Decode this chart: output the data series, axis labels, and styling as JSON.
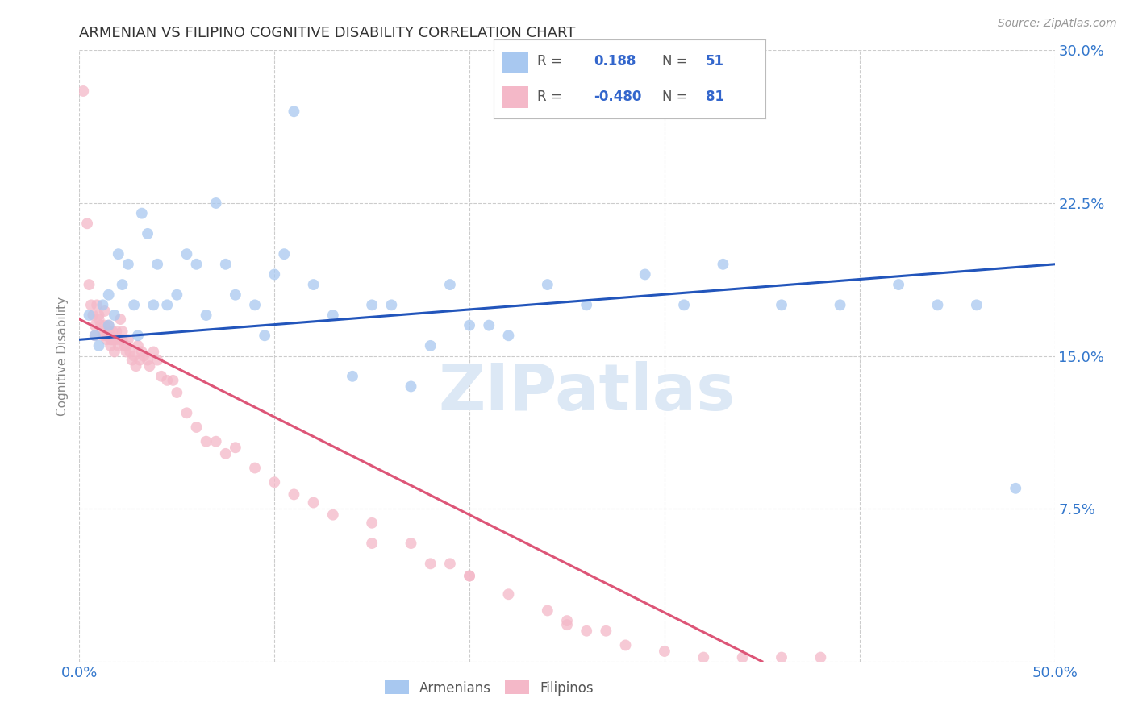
{
  "title": "ARMENIAN VS FILIPINO COGNITIVE DISABILITY CORRELATION CHART",
  "source": "Source: ZipAtlas.com",
  "ylabel_label": "Cognitive Disability",
  "xlim": [
    0.0,
    0.5
  ],
  "ylim": [
    0.0,
    0.3
  ],
  "xticks": [
    0.0,
    0.1,
    0.2,
    0.3,
    0.4,
    0.5
  ],
  "yticks": [
    0.0,
    0.075,
    0.15,
    0.225,
    0.3
  ],
  "xtick_labels": [
    "0.0%",
    "",
    "",
    "",
    "",
    "50.0%"
  ],
  "ytick_labels": [
    "",
    "7.5%",
    "15.0%",
    "22.5%",
    "30.0%"
  ],
  "legend_armenian_R": "0.188",
  "legend_armenian_N": "51",
  "legend_filipino_R": "-0.480",
  "legend_filipino_N": "81",
  "armenian_color": "#a8c8f0",
  "filipino_color": "#f4b8c8",
  "armenian_line_color": "#2255bb",
  "filipino_line_color": "#dd5577",
  "watermark": "ZIPatlas",
  "armenian_x": [
    0.005,
    0.008,
    0.01,
    0.012,
    0.015,
    0.015,
    0.018,
    0.02,
    0.022,
    0.025,
    0.028,
    0.03,
    0.032,
    0.035,
    0.038,
    0.04,
    0.045,
    0.05,
    0.055,
    0.06,
    0.065,
    0.07,
    0.075,
    0.08,
    0.09,
    0.095,
    0.1,
    0.105,
    0.11,
    0.12,
    0.13,
    0.14,
    0.15,
    0.16,
    0.17,
    0.18,
    0.19,
    0.2,
    0.21,
    0.22,
    0.24,
    0.26,
    0.29,
    0.31,
    0.33,
    0.36,
    0.39,
    0.42,
    0.44,
    0.46,
    0.48
  ],
  "armenian_y": [
    0.17,
    0.16,
    0.155,
    0.175,
    0.165,
    0.18,
    0.17,
    0.2,
    0.185,
    0.195,
    0.175,
    0.16,
    0.22,
    0.21,
    0.175,
    0.195,
    0.175,
    0.18,
    0.2,
    0.195,
    0.17,
    0.225,
    0.195,
    0.18,
    0.175,
    0.16,
    0.19,
    0.2,
    0.27,
    0.185,
    0.17,
    0.14,
    0.175,
    0.175,
    0.135,
    0.155,
    0.185,
    0.165,
    0.165,
    0.16,
    0.185,
    0.175,
    0.19,
    0.175,
    0.195,
    0.175,
    0.175,
    0.185,
    0.175,
    0.175,
    0.085
  ],
  "filipino_x": [
    0.002,
    0.004,
    0.005,
    0.006,
    0.007,
    0.008,
    0.008,
    0.009,
    0.01,
    0.01,
    0.011,
    0.012,
    0.012,
    0.013,
    0.013,
    0.014,
    0.014,
    0.015,
    0.015,
    0.016,
    0.016,
    0.017,
    0.017,
    0.018,
    0.018,
    0.019,
    0.02,
    0.02,
    0.021,
    0.022,
    0.022,
    0.023,
    0.024,
    0.024,
    0.025,
    0.026,
    0.027,
    0.028,
    0.029,
    0.03,
    0.031,
    0.032,
    0.033,
    0.035,
    0.036,
    0.038,
    0.04,
    0.042,
    0.045,
    0.048,
    0.05,
    0.055,
    0.06,
    0.065,
    0.07,
    0.075,
    0.08,
    0.09,
    0.1,
    0.11,
    0.12,
    0.13,
    0.15,
    0.17,
    0.19,
    0.2,
    0.22,
    0.24,
    0.25,
    0.27,
    0.15,
    0.18,
    0.2,
    0.25,
    0.26,
    0.28,
    0.3,
    0.32,
    0.34,
    0.36,
    0.38
  ],
  "filipino_y": [
    0.28,
    0.215,
    0.185,
    0.175,
    0.17,
    0.165,
    0.16,
    0.175,
    0.17,
    0.168,
    0.165,
    0.162,
    0.16,
    0.172,
    0.165,
    0.16,
    0.158,
    0.165,
    0.162,
    0.158,
    0.155,
    0.162,
    0.158,
    0.158,
    0.152,
    0.162,
    0.158,
    0.155,
    0.168,
    0.162,
    0.158,
    0.155,
    0.155,
    0.152,
    0.158,
    0.152,
    0.148,
    0.15,
    0.145,
    0.155,
    0.148,
    0.152,
    0.15,
    0.148,
    0.145,
    0.152,
    0.148,
    0.14,
    0.138,
    0.138,
    0.132,
    0.122,
    0.115,
    0.108,
    0.108,
    0.102,
    0.105,
    0.095,
    0.088,
    0.082,
    0.078,
    0.072,
    0.068,
    0.058,
    0.048,
    0.042,
    0.033,
    0.025,
    0.02,
    0.015,
    0.058,
    0.048,
    0.042,
    0.018,
    0.015,
    0.008,
    0.005,
    0.002,
    0.002,
    0.002,
    0.002
  ],
  "arm_trend_x": [
    0.0,
    0.5
  ],
  "arm_trend_y": [
    0.158,
    0.195
  ],
  "fil_trend_x": [
    0.0,
    0.35
  ],
  "fil_trend_y": [
    0.168,
    0.0
  ]
}
